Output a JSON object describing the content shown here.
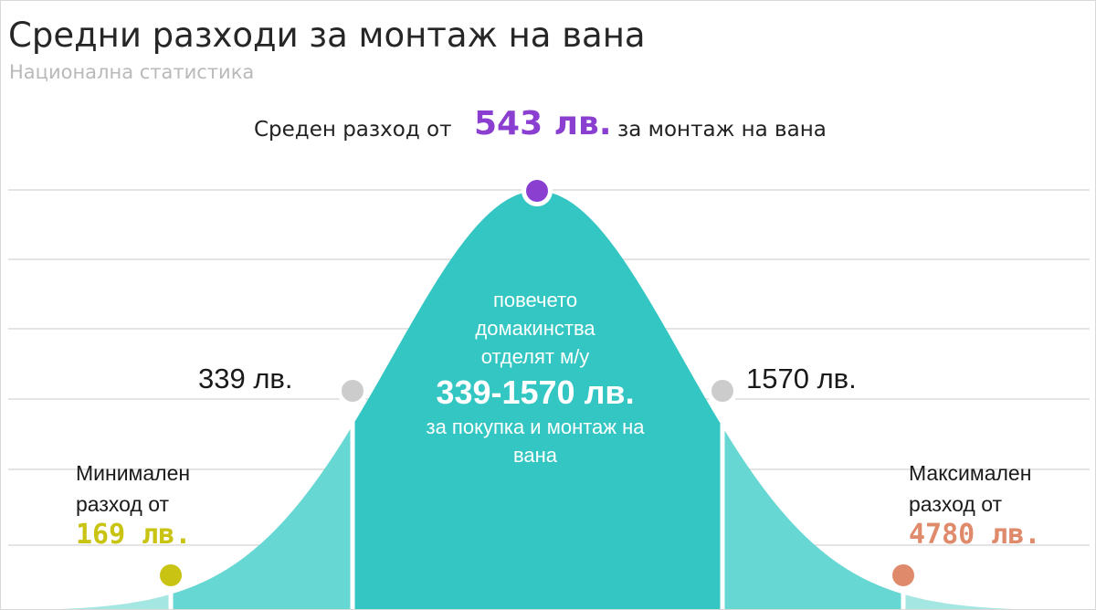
{
  "header": {
    "title": "Средни разходи за монтаж на вана",
    "subtitle": "Национална статистика"
  },
  "headline": {
    "prefix": "Среден разход от",
    "value": "543 лв.",
    "suffix": "за монтаж на вана"
  },
  "center": {
    "line1": "повечето",
    "line2": "домакинства",
    "line3": "отделят м/у",
    "range": "339-1570 лв.",
    "line4": "за покупка и монтаж на",
    "line5": "вана"
  },
  "chart_data": {
    "type": "area",
    "title": "Средни разходи за монтаж на вана",
    "subtitle": "Национална статистика",
    "markers": [
      {
        "name": "minimum",
        "label_line1": "Минимален",
        "label_line2": "разход от",
        "value": 169,
        "display": "169 лв.",
        "color": "#c9c413"
      },
      {
        "name": "range-low",
        "value": 339,
        "display": "339 лв.",
        "color": "#cccccc"
      },
      {
        "name": "average",
        "value": 543,
        "display": "543 лв.",
        "color": "#8a3fd1"
      },
      {
        "name": "range-high",
        "value": 1570,
        "display": "1570 лв.",
        "color": "#cccccc"
      },
      {
        "name": "maximum",
        "label_line1": "Максимален",
        "label_line2": "разход от",
        "value": 4780,
        "display": "4780 лв.",
        "color": "#e08a6c"
      }
    ],
    "colors": {
      "core": "#33c6c2",
      "shoulder": "#66d7d2",
      "tail": "#a3e6e2",
      "grid": "#e4e4e4"
    },
    "grid": true
  }
}
